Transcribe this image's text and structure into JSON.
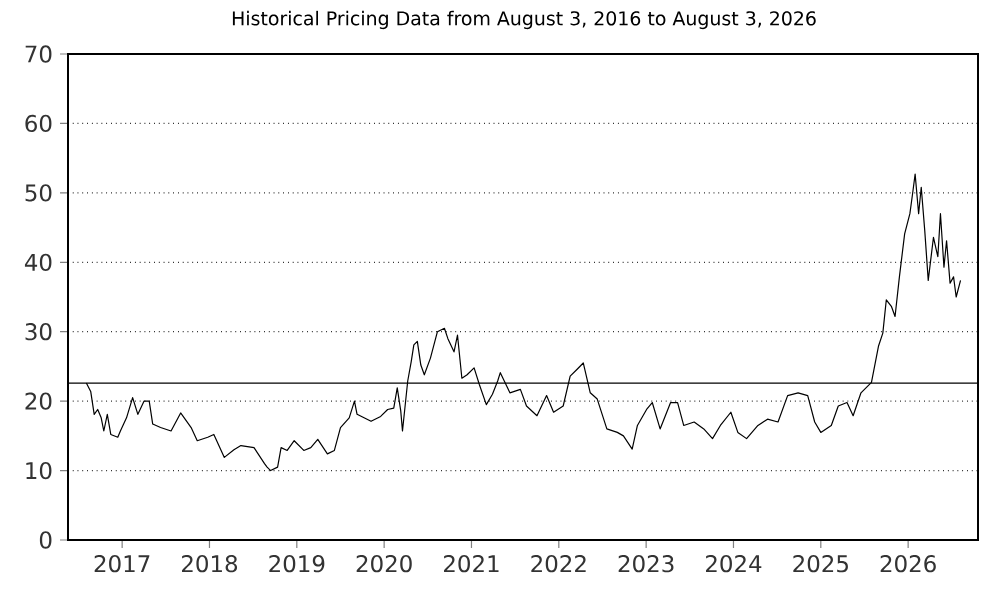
{
  "chart_data": {
    "type": "line",
    "title": "Historical Pricing Data from August 3, 2016 to August 3, 2026",
    "x": [
      2016.59,
      2016.64,
      2016.68,
      2016.72,
      2016.76,
      2016.79,
      2016.83,
      2016.87,
      2016.95,
      2016.98,
      2017.05,
      2017.12,
      2017.18,
      2017.25,
      2017.31,
      2017.35,
      2017.44,
      2017.56,
      2017.67,
      2017.79,
      2017.86,
      2017.98,
      2018.05,
      2018.17,
      2018.28,
      2018.36,
      2018.51,
      2018.63,
      2018.66,
      2018.7,
      2018.78,
      2018.82,
      2018.89,
      2018.97,
      2019.08,
      2019.16,
      2019.24,
      2019.35,
      2019.43,
      2019.5,
      2019.6,
      2019.66,
      2019.69,
      2019.77,
      2019.85,
      2019.96,
      2020.04,
      2020.11,
      2020.15,
      2020.19,
      2020.21,
      2020.27,
      2020.31,
      2020.34,
      2020.38,
      2020.42,
      2020.46,
      2020.53,
      2020.61,
      2020.69,
      2020.73,
      2020.8,
      2020.84,
      2020.89,
      2020.95,
      2021.03,
      2021.09,
      2021.17,
      2021.24,
      2021.3,
      2021.33,
      2021.44,
      2021.56,
      2021.63,
      2021.75,
      2021.86,
      2021.94,
      2022.05,
      2022.13,
      2022.21,
      2022.28,
      2022.36,
      2022.44,
      2022.55,
      2022.67,
      2022.74,
      2022.84,
      2022.9,
      2023.01,
      2023.07,
      2023.16,
      2023.28,
      2023.36,
      2023.43,
      2023.55,
      2023.66,
      2023.76,
      2023.85,
      2023.97,
      2024.05,
      2024.15,
      2024.28,
      2024.39,
      2024.51,
      2024.62,
      2024.74,
      2024.85,
      2024.93,
      2025.0,
      2025.12,
      2025.2,
      2025.3,
      2025.37,
      2025.46,
      2025.58,
      2025.66,
      2025.71,
      2025.75,
      2025.81,
      2025.85,
      2025.9,
      2025.96,
      2026.02,
      2026.05,
      2026.08,
      2026.12,
      2026.15,
      2026.19,
      2026.23,
      2026.29,
      2026.34,
      2026.37,
      2026.41,
      2026.44,
      2026.48,
      2026.52,
      2026.55,
      2026.6
    ],
    "series": [
      {
        "color": "#000000",
        "values": [
          22.6,
          21.4,
          18.1,
          18.8,
          17.6,
          15.7,
          18.1,
          15.2,
          14.8,
          15.7,
          17.6,
          20.5,
          18.1,
          20,
          20,
          16.7,
          16.2,
          15.7,
          18.3,
          16.2,
          14.3,
          14.8,
          15.2,
          11.9,
          13,
          13.6,
          13.3,
          11,
          10.5,
          10,
          10.5,
          13.3,
          12.9,
          14.3,
          12.9,
          13.3,
          14.5,
          12.4,
          12.9,
          16.2,
          17.6,
          20,
          18.1,
          17.6,
          17.1,
          17.8,
          18.8,
          19,
          21.9,
          18.6,
          15.7,
          22.9,
          25.7,
          28.1,
          28.6,
          25.2,
          23.8,
          26.2,
          30,
          30.5,
          29,
          27.1,
          29.5,
          23.3,
          23.8,
          24.8,
          22.4,
          19.5,
          21,
          22.9,
          24.1,
          21.2,
          21.7,
          19.3,
          17.9,
          20.8,
          18.4,
          19.3,
          23.6,
          24.6,
          25.5,
          21.2,
          20.3,
          16,
          15.5,
          15,
          13.1,
          16.5,
          18.9,
          19.8,
          16,
          19.8,
          19.8,
          16.5,
          17,
          16,
          14.6,
          16.5,
          18.4,
          15.5,
          14.6,
          16.5,
          17.4,
          17,
          20.8,
          21.2,
          20.8,
          17,
          15.5,
          16.5,
          19.3,
          19.8,
          17.9,
          21.2,
          22.7,
          27.9,
          29.8,
          34.6,
          33.6,
          32.2,
          37.9,
          44.1,
          47,
          49.8,
          52.7,
          47,
          50.8,
          44.6,
          37.4,
          43.6,
          40.8,
          47,
          39.3,
          43.1,
          37,
          37.9,
          35,
          37.4
        ]
      }
    ],
    "xlim": [
      2016.38,
      2026.8
    ],
    "ylim": [
      0,
      70
    ],
    "xticks": [
      2017,
      2018,
      2019,
      2020,
      2021,
      2022,
      2023,
      2024,
      2025,
      2026
    ],
    "yticks": [
      0,
      10,
      20,
      30,
      40,
      50,
      60,
      70
    ],
    "grid": "y",
    "ref_lines": [
      {
        "axis": "y",
        "value": 22.6,
        "color": "#000000"
      }
    ]
  }
}
